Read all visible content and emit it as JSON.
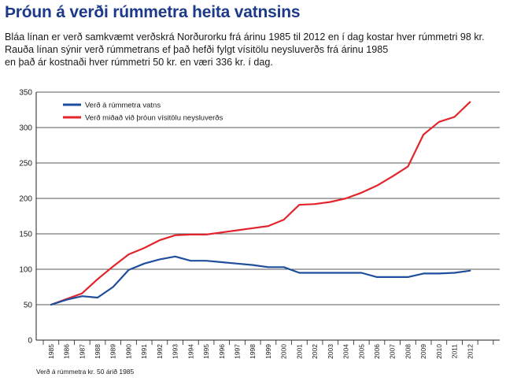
{
  "header": {
    "title": "Þróun á verði rúmmetra heita vatnsins",
    "subtitle_lines": [
      "Bláa línan er verð samkvæmt verðskrá Norðurorku frá árinu 1985 til 2012 en í dag kostar hver rúmmetri 98 kr.",
      "Rauða línan sýnir verð rúmmetrans ef það hefði fylgt vísitölu neysluverðs frá árinu 1985",
      "en það ár kostnaði hver rúmmetri 50 kr. en væri 336 kr. í dag."
    ]
  },
  "footnote": "Verð á rúmmetra kr. 50 árið 1985",
  "chart_data": {
    "type": "line",
    "title": "Þróun á verði rúmmetra heita vatnsins",
    "xlabel": "",
    "ylabel": "",
    "ylim": [
      0,
      350
    ],
    "yticks": [
      0,
      50,
      100,
      150,
      200,
      250,
      300,
      350
    ],
    "grid": true,
    "legend_position": "top-left",
    "x": [
      "1985",
      "1986",
      "1987",
      "1988",
      "1989",
      "1990",
      "1991",
      "1992",
      "1993",
      "1994",
      "1995",
      "1996",
      "1997",
      "1998",
      "1999",
      "2000",
      "2001",
      "2002",
      "2003",
      "2004",
      "2005",
      "2006",
      "2007",
      "2008",
      "2009",
      "2010",
      "2011",
      "2012"
    ],
    "series": [
      {
        "name": "Verð á rúmmetra vatns",
        "color": "#1f4e9c",
        "values": [
          50,
          57,
          62,
          60,
          75,
          99,
          108,
          114,
          118,
          112,
          112,
          110,
          108,
          106,
          103,
          103,
          95,
          95,
          95,
          95,
          95,
          89,
          89,
          89,
          94,
          94,
          95,
          98
        ]
      },
      {
        "name": "Verð miðað við þróun vísitölu neysluverðs",
        "color": "#e3242b",
        "values": [
          50,
          58,
          66,
          86,
          104,
          121,
          130,
          141,
          148,
          149,
          149,
          152,
          155,
          158,
          161,
          170,
          191,
          192,
          195,
          200,
          208,
          218,
          231,
          245,
          290,
          308,
          315,
          336
        ]
      }
    ]
  }
}
